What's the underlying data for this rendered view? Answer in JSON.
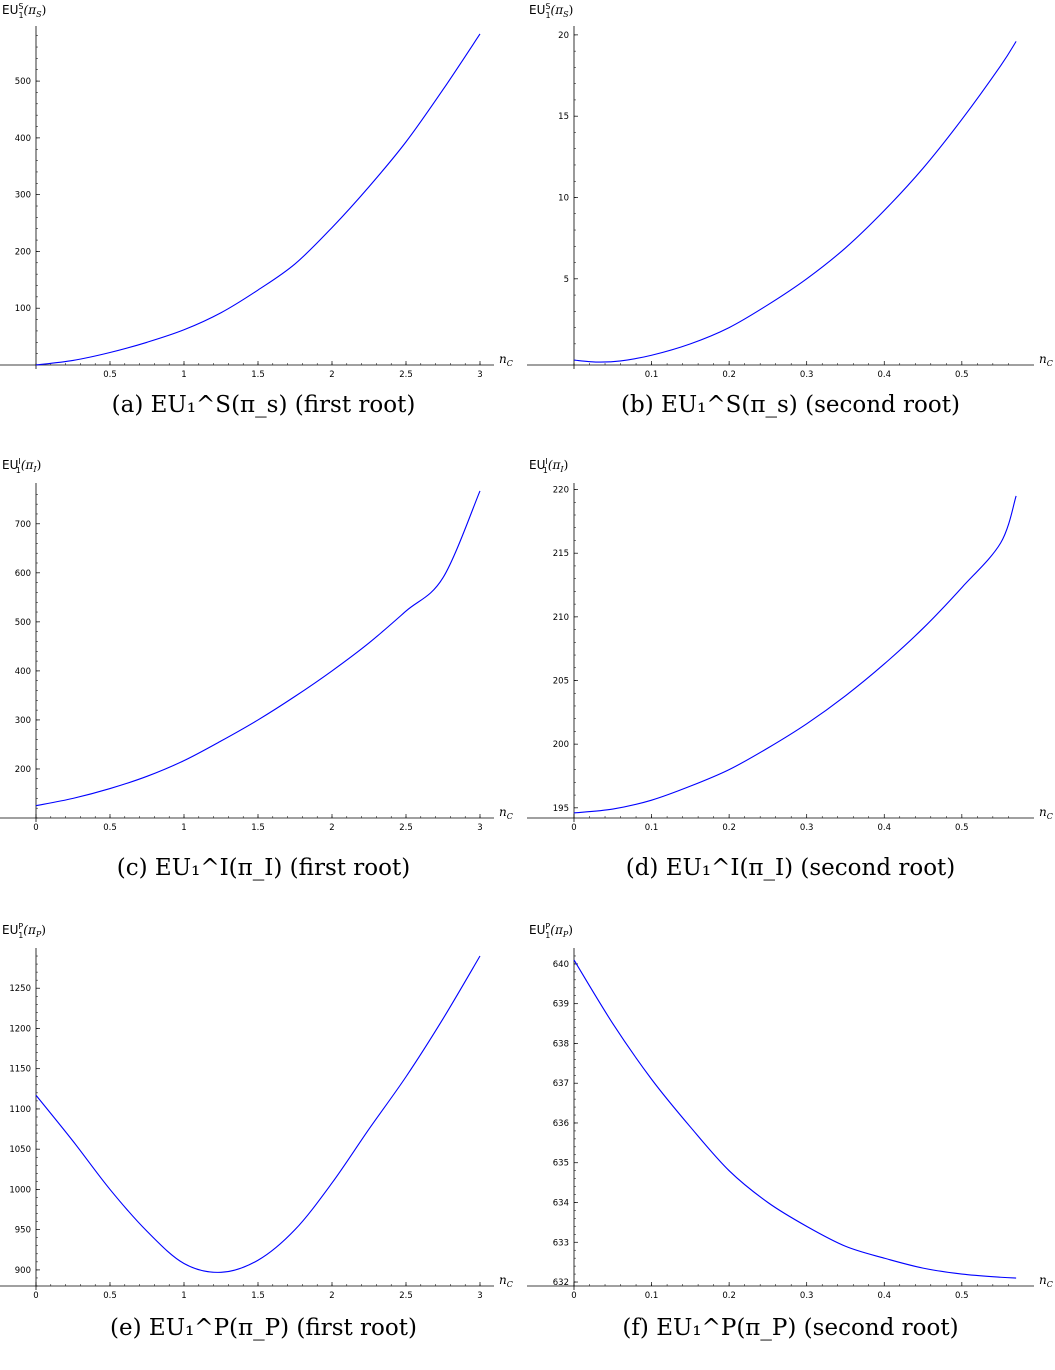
{
  "chart_data": [
    {
      "type": "line",
      "caption": "(a) EU₁^S(π_s) (first root)",
      "ylabel": "EU₁^S(π_S)",
      "xlabel": "n_C",
      "xlim": [
        0,
        3
      ],
      "ylim": [
        0,
        590
      ],
      "xticks": [
        "0.5",
        "1",
        "1.5",
        "2",
        "2.5",
        "3"
      ],
      "yticks": [
        "100",
        "200",
        "300",
        "400",
        "500"
      ],
      "series": [
        {
          "color": "#0000ff",
          "x": [
            0,
            0.25,
            0.5,
            0.75,
            1,
            1.25,
            1.5,
            1.75,
            2,
            2.25,
            2.5,
            2.75,
            3
          ],
          "y": [
            0,
            8,
            22,
            40,
            62,
            92,
            132,
            178,
            242,
            314,
            393,
            485,
            583
          ]
        }
      ]
    },
    {
      "type": "line",
      "caption": "(b) EU₁^S(π_s) (second root)",
      "ylabel": "EU₁^S(π_S)",
      "xlabel": "n_C",
      "xlim": [
        0,
        0.575
      ],
      "ylim": [
        -0.3,
        20.3
      ],
      "xticks": [
        "0.1",
        "0.2",
        "0.3",
        "0.4",
        "0.5"
      ],
      "yticks": [
        "5",
        "10",
        "15",
        "20"
      ],
      "series": [
        {
          "color": "#0000ff",
          "x": [
            0,
            0.03,
            0.06,
            0.1,
            0.15,
            0.2,
            0.25,
            0.3,
            0.35,
            0.4,
            0.45,
            0.5,
            0.55,
            0.57
          ],
          "y": [
            0,
            -0.12,
            -0.05,
            0.3,
            1,
            2,
            3.4,
            5,
            6.9,
            9.2,
            11.8,
            14.8,
            18.1,
            19.6
          ]
        }
      ]
    },
    {
      "type": "line",
      "caption": "(c) EU₁^I(π_I) (first root)",
      "ylabel": "EU₁^I(π_I)",
      "xlabel": "n_C",
      "xlim": [
        0,
        3
      ],
      "ylim": [
        100,
        775
      ],
      "xticks": [
        "0",
        "0.5",
        "1",
        "1.5",
        "2",
        "2.5",
        "3"
      ],
      "yticks": [
        "200",
        "300",
        "400",
        "500",
        "600",
        "700"
      ],
      "series": [
        {
          "color": "#0000ff",
          "x": [
            0,
            0.25,
            0.5,
            0.75,
            1,
            1.25,
            1.5,
            1.75,
            2,
            2.25,
            2.5,
            2.75,
            3
          ],
          "y": [
            125,
            140,
            160,
            185,
            217,
            257,
            300,
            348,
            400,
            457,
            522,
            590,
            767
          ]
        }
      ]
    },
    {
      "type": "line",
      "caption": "(d) EU₁^I(π_I) (second root)",
      "ylabel": "EU₁^I(π_I)",
      "xlabel": "n_C",
      "xlim": [
        0,
        0.575
      ],
      "ylim": [
        194.2,
        220.2
      ],
      "xticks": [
        "0",
        "0.1",
        "0.2",
        "0.3",
        "0.4",
        "0.5"
      ],
      "yticks": [
        "195",
        "200",
        "205",
        "210",
        "215",
        "220"
      ],
      "series": [
        {
          "color": "#0000ff",
          "x": [
            0,
            0.05,
            0.1,
            0.15,
            0.2,
            0.25,
            0.3,
            0.35,
            0.4,
            0.45,
            0.5,
            0.55,
            0.57
          ],
          "y": [
            194.6,
            194.9,
            195.6,
            196.7,
            198,
            199.7,
            201.6,
            203.8,
            206.3,
            209.1,
            212.3,
            215.8,
            219.5
          ]
        }
      ]
    },
    {
      "type": "line",
      "caption": "(e) EU₁^P(π_P) (first root)",
      "ylabel": "EU₁^P(π_P)",
      "xlabel": "n_C",
      "xlim": [
        0,
        3
      ],
      "ylim": [
        880,
        1295
      ],
      "xticks": [
        "0",
        "0.5",
        "1",
        "1.5",
        "2",
        "2.5",
        "3"
      ],
      "yticks": [
        "900",
        "950",
        "1000",
        "1050",
        "1100",
        "1150",
        "1200",
        "1250"
      ],
      "series": [
        {
          "color": "#0000ff",
          "x": [
            0,
            0.25,
            0.5,
            0.75,
            1,
            1.25,
            1.5,
            1.75,
            2,
            2.25,
            2.5,
            2.75,
            3
          ],
          "y": [
            1117,
            1060,
            1000,
            948,
            908,
            897,
            912,
            950,
            1008,
            1075,
            1140,
            1212,
            1290
          ]
        }
      ]
    },
    {
      "type": "line",
      "caption": "(f) EU₁^P(π_P) (second root)",
      "ylabel": "EU₁^P(π_P)",
      "xlabel": "n_C",
      "xlim": [
        0,
        0.575
      ],
      "ylim": [
        631.9,
        640.3
      ],
      "xticks": [
        "0",
        "0.1",
        "0.2",
        "0.3",
        "0.4",
        "0.5"
      ],
      "yticks": [
        "632",
        "633",
        "634",
        "635",
        "636",
        "637",
        "638",
        "639",
        "640"
      ],
      "series": [
        {
          "color": "#0000ff",
          "x": [
            0,
            0.05,
            0.1,
            0.15,
            0.2,
            0.25,
            0.3,
            0.35,
            0.4,
            0.45,
            0.5,
            0.55,
            0.57
          ],
          "y": [
            640.1,
            638.5,
            637.1,
            635.9,
            634.8,
            634,
            633.4,
            632.9,
            632.6,
            632.35,
            632.2,
            632.12,
            632.1
          ]
        }
      ]
    }
  ]
}
